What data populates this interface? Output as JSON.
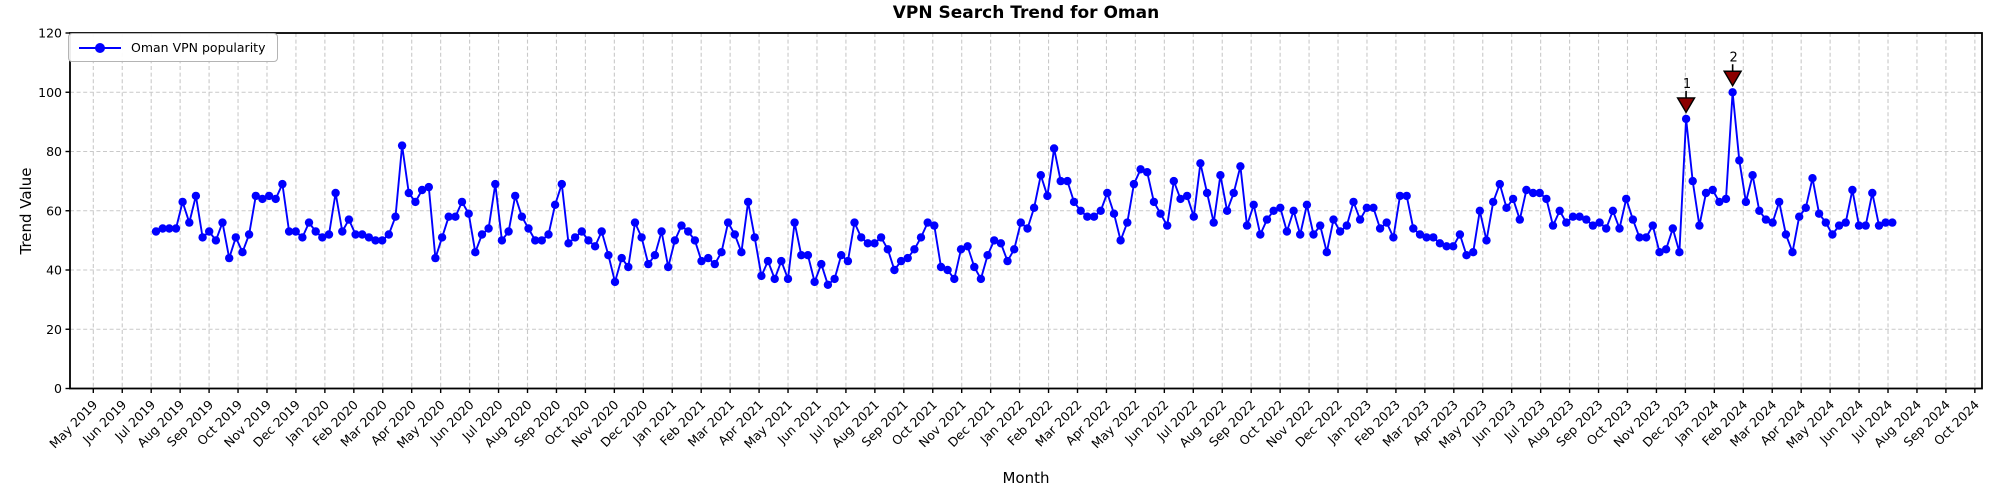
{
  "figure": {
    "title": "VPN Search Trend for Oman",
    "xlabel": "Month",
    "ylabel": "Trend Value"
  },
  "legend": {
    "label": "Oman VPN popularity"
  },
  "colors": {
    "line": "#0000ff",
    "marker": "#0000ff",
    "annotation": "#8b0000",
    "annotation_edge": "#000000",
    "grid": "#c9c9c9",
    "spine": "#000000",
    "background": "#ffffff"
  },
  "chart_data": {
    "type": "line",
    "title": "VPN Search Trend for Oman",
    "xlabel": "Month",
    "ylabel": "Trend Value",
    "ylim": [
      0,
      120
    ],
    "y_ticks": [
      0,
      20,
      40,
      60,
      80,
      100,
      120
    ],
    "grid": true,
    "legend_position": "upper left",
    "x_tick_labels": [
      "May 2019",
      "Jun 2019",
      "Jul 2019",
      "Aug 2019",
      "Sep 2019",
      "Oct 2019",
      "Nov 2019",
      "Dec 2019",
      "Jan 2020",
      "Feb 2020",
      "Mar 2020",
      "Apr 2020",
      "May 2020",
      "Jun 2020",
      "Jul 2020",
      "Aug 2020",
      "Sep 2020",
      "Oct 2020",
      "Nov 2020",
      "Dec 2020",
      "Jan 2021",
      "Feb 2021",
      "Mar 2021",
      "Apr 2021",
      "May 2021",
      "Jun 2021",
      "Jul 2021",
      "Aug 2021",
      "Sep 2021",
      "Oct 2021",
      "Nov 2021",
      "Dec 2021",
      "Jan 2022",
      "Feb 2022",
      "Mar 2022",
      "Apr 2022",
      "May 2022",
      "Jun 2022",
      "Jul 2022",
      "Aug 2022",
      "Sep 2022",
      "Oct 2022",
      "Nov 2022",
      "Dec 2022",
      "Jan 2023",
      "Feb 2023",
      "Mar 2023",
      "Apr 2023",
      "May 2023",
      "Jun 2023",
      "Jul 2023",
      "Aug 2023",
      "Sep 2023",
      "Oct 2023",
      "Nov 2023",
      "Dec 2023",
      "Jan 2024",
      "Feb 2024",
      "Mar 2024",
      "Apr 2024",
      "May 2024",
      "Jun 2024",
      "Jul 2024",
      "Aug 2024",
      "Sep 2024",
      "Oct 2024"
    ],
    "series": [
      {
        "name": "Oman VPN popularity",
        "start_week": "2019-07-07",
        "interval_days": 7,
        "values": [
          53,
          54,
          54,
          54,
          63,
          56,
          65,
          51,
          53,
          50,
          56,
          44,
          51,
          46,
          52,
          65,
          64,
          65,
          64,
          69,
          53,
          53,
          51,
          56,
          53,
          51,
          52,
          66,
          53,
          57,
          52,
          52,
          51,
          50,
          50,
          52,
          58,
          82,
          66,
          63,
          67,
          68,
          44,
          51,
          58,
          58,
          63,
          59,
          46,
          52,
          54,
          69,
          50,
          53,
          65,
          58,
          54,
          50,
          50,
          52,
          62,
          69,
          49,
          51,
          53,
          50,
          48,
          53,
          45,
          36,
          44,
          41,
          56,
          51,
          42,
          45,
          53,
          41,
          50,
          55,
          53,
          50,
          43,
          44,
          42,
          46,
          56,
          52,
          46,
          63,
          51,
          38,
          43,
          37,
          43,
          37,
          56,
          45,
          45,
          36,
          42,
          35,
          37,
          45,
          43,
          56,
          51,
          49,
          49,
          51,
          47,
          40,
          43,
          44,
          47,
          51,
          56,
          55,
          41,
          40,
          37,
          47,
          48,
          41,
          37,
          45,
          50,
          49,
          43,
          47,
          56,
          54,
          61,
          72,
          65,
          81,
          70,
          70,
          63,
          60,
          58,
          58,
          60,
          66,
          59,
          50,
          56,
          69,
          74,
          73,
          63,
          59,
          55,
          70,
          64,
          65,
          58,
          76,
          66,
          56,
          72,
          60,
          66,
          75,
          55,
          62,
          52,
          57,
          60,
          61,
          53,
          60,
          52,
          62,
          52,
          55,
          46,
          57,
          53,
          55,
          63,
          57,
          61,
          61,
          54,
          56,
          51,
          65,
          65,
          54,
          52,
          51,
          51,
          49,
          48,
          48,
          52,
          45,
          46,
          60,
          50,
          63,
          69,
          61,
          64,
          57,
          67,
          66,
          66,
          64,
          55,
          60,
          56,
          58,
          58,
          57,
          55,
          56,
          54,
          60,
          54,
          64,
          57,
          51,
          51,
          55,
          46,
          47,
          54,
          46,
          91,
          70,
          55,
          66,
          67,
          63,
          64,
          100,
          77,
          63,
          72,
          60,
          57,
          56,
          63,
          52,
          46,
          58,
          61,
          71,
          59,
          56,
          52,
          55,
          56,
          67,
          55,
          55,
          66,
          55,
          56,
          56
        ]
      }
    ],
    "annotations": [
      {
        "label": "1",
        "week": "2023-12-03",
        "value": 91
      },
      {
        "label": "2",
        "week": "2024-01-21",
        "value": 100
      }
    ]
  }
}
